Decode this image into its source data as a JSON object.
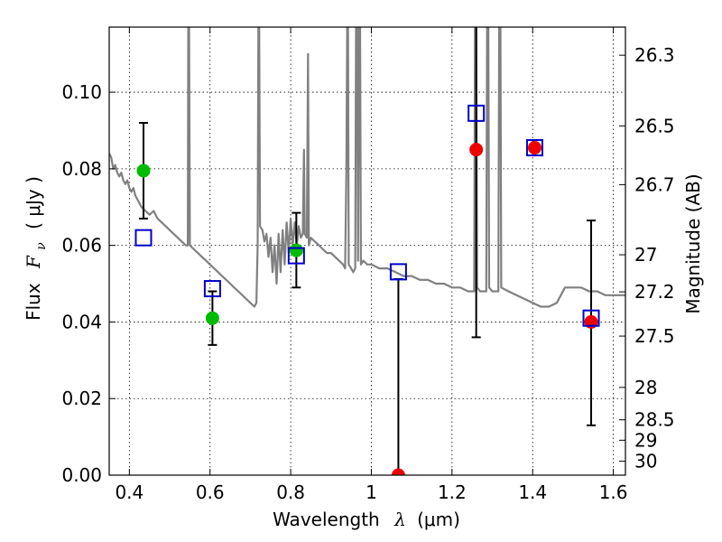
{
  "chart_data": {
    "type": "scatter",
    "xlabel_text": "Wavelength",
    "xlabel_symbol": "λ",
    "xlabel_unit": "(μm)",
    "ylabel_text": "Flux",
    "ylabel_symbol": "F",
    "ylabel_subscript": "ν",
    "ylabel_unit": "( μJy )",
    "right_ylabel": "Magnitude (AB)",
    "xlim": [
      0.35,
      1.63
    ],
    "ylim": [
      0.0,
      0.117
    ],
    "x_ticks": [
      {
        "value": 0.4,
        "label": "0.4"
      },
      {
        "value": 0.6,
        "label": "0.6"
      },
      {
        "value": 0.8,
        "label": "0.8"
      },
      {
        "value": 1.0,
        "label": "1"
      },
      {
        "value": 1.2,
        "label": "1.2"
      },
      {
        "value": 1.4,
        "label": "1.4"
      },
      {
        "value": 1.6,
        "label": "1.6"
      }
    ],
    "y_ticks": [
      {
        "value": 0.0,
        "label": "0.00"
      },
      {
        "value": 0.02,
        "label": "0.02"
      },
      {
        "value": 0.04,
        "label": "0.04"
      },
      {
        "value": 0.06,
        "label": "0.06"
      },
      {
        "value": 0.08,
        "label": "0.08"
      },
      {
        "value": 0.1,
        "label": "0.10"
      }
    ],
    "right_ticks": [
      {
        "value": 26.3,
        "label": "26.3"
      },
      {
        "value": 26.5,
        "label": "26.5"
      },
      {
        "value": 26.7,
        "label": "26.7"
      },
      {
        "value": 27.0,
        "label": "27"
      },
      {
        "value": 27.2,
        "label": "27.2"
      },
      {
        "value": 27.5,
        "label": "27.5"
      },
      {
        "value": 28.0,
        "label": "28"
      },
      {
        "value": 28.5,
        "label": "28.5"
      },
      {
        "value": 29.0,
        "label": "29"
      },
      {
        "value": 30.0,
        "label": "30"
      }
    ],
    "grid": true,
    "colors": {
      "sed": "#808080",
      "green": "#00bb00",
      "red": "#ee0000",
      "box": "#0000cc",
      "error": "#000000"
    },
    "sed_model": [
      [
        0.35,
        0.084
      ],
      [
        0.355,
        0.083
      ],
      [
        0.36,
        0.08
      ],
      [
        0.365,
        0.081
      ],
      [
        0.37,
        0.079
      ],
      [
        0.375,
        0.078
      ],
      [
        0.38,
        0.079
      ],
      [
        0.385,
        0.077
      ],
      [
        0.39,
        0.076
      ],
      [
        0.395,
        0.077
      ],
      [
        0.4,
        0.075
      ],
      [
        0.405,
        0.074
      ],
      [
        0.41,
        0.075
      ],
      [
        0.415,
        0.073
      ],
      [
        0.42,
        0.072
      ],
      [
        0.425,
        0.071
      ],
      [
        0.43,
        0.07
      ],
      [
        0.44,
        0.069
      ],
      [
        0.45,
        0.068
      ],
      [
        0.46,
        0.069
      ],
      [
        0.47,
        0.067
      ],
      [
        0.48,
        0.066
      ],
      [
        0.49,
        0.065
      ],
      [
        0.5,
        0.064
      ],
      [
        0.51,
        0.063
      ],
      [
        0.52,
        0.062
      ],
      [
        0.53,
        0.061
      ],
      [
        0.54,
        0.06
      ],
      [
        0.545,
        0.06
      ],
      [
        0.546,
        0.117
      ],
      [
        0.548,
        0.117
      ],
      [
        0.55,
        0.06
      ],
      [
        0.56,
        0.059
      ],
      [
        0.57,
        0.058
      ],
      [
        0.58,
        0.057
      ],
      [
        0.59,
        0.056
      ],
      [
        0.6,
        0.055
      ],
      [
        0.61,
        0.054
      ],
      [
        0.62,
        0.053
      ],
      [
        0.63,
        0.052
      ],
      [
        0.64,
        0.051
      ],
      [
        0.65,
        0.05
      ],
      [
        0.66,
        0.049
      ],
      [
        0.67,
        0.048
      ],
      [
        0.68,
        0.047
      ],
      [
        0.69,
        0.046
      ],
      [
        0.7,
        0.045
      ],
      [
        0.71,
        0.044
      ],
      [
        0.715,
        0.045
      ],
      [
        0.718,
        0.06
      ],
      [
        0.72,
        0.117
      ],
      [
        0.722,
        0.117
      ],
      [
        0.724,
        0.065
      ],
      [
        0.73,
        0.064
      ],
      [
        0.735,
        0.061
      ],
      [
        0.74,
        0.063
      ],
      [
        0.745,
        0.057
      ],
      [
        0.75,
        0.062
      ],
      [
        0.755,
        0.053
      ],
      [
        0.76,
        0.06
      ],
      [
        0.765,
        0.05
      ],
      [
        0.77,
        0.063
      ],
      [
        0.775,
        0.053
      ],
      [
        0.78,
        0.064
      ],
      [
        0.785,
        0.055
      ],
      [
        0.79,
        0.066
      ],
      [
        0.795,
        0.058
      ],
      [
        0.8,
        0.067
      ],
      [
        0.805,
        0.06
      ],
      [
        0.81,
        0.066
      ],
      [
        0.815,
        0.06
      ],
      [
        0.82,
        0.065
      ],
      [
        0.825,
        0.062
      ],
      [
        0.83,
        0.063
      ],
      [
        0.833,
        0.085
      ],
      [
        0.835,
        0.063
      ],
      [
        0.84,
        0.062
      ],
      [
        0.843,
        0.11
      ],
      [
        0.845,
        0.06
      ],
      [
        0.85,
        0.062
      ],
      [
        0.86,
        0.061
      ],
      [
        0.87,
        0.06
      ],
      [
        0.88,
        0.059
      ],
      [
        0.89,
        0.058
      ],
      [
        0.9,
        0.058
      ],
      [
        0.91,
        0.057
      ],
      [
        0.92,
        0.056
      ],
      [
        0.93,
        0.055
      ],
      [
        0.935,
        0.054
      ],
      [
        0.938,
        0.08
      ],
      [
        0.94,
        0.117
      ],
      [
        0.942,
        0.117
      ],
      [
        0.944,
        0.055
      ],
      [
        0.95,
        0.054
      ],
      [
        0.955,
        0.053
      ],
      [
        0.96,
        0.054
      ],
      [
        0.962,
        0.117
      ],
      [
        0.965,
        0.117
      ],
      [
        0.967,
        0.056
      ],
      [
        0.97,
        0.117
      ],
      [
        0.972,
        0.117
      ],
      [
        0.974,
        0.055
      ],
      [
        0.98,
        0.056
      ],
      [
        0.99,
        0.055
      ],
      [
        1.0,
        0.055
      ],
      [
        1.02,
        0.054
      ],
      [
        1.04,
        0.054
      ],
      [
        1.06,
        0.053
      ],
      [
        1.08,
        0.052
      ],
      [
        1.1,
        0.052
      ],
      [
        1.12,
        0.051
      ],
      [
        1.14,
        0.051
      ],
      [
        1.16,
        0.05
      ],
      [
        1.18,
        0.05
      ],
      [
        1.2,
        0.049
      ],
      [
        1.22,
        0.049
      ],
      [
        1.24,
        0.048
      ],
      [
        1.25,
        0.048
      ],
      [
        1.255,
        0.048
      ],
      [
        1.257,
        0.117
      ],
      [
        1.26,
        0.117
      ],
      [
        1.262,
        0.049
      ],
      [
        1.27,
        0.048
      ],
      [
        1.28,
        0.048
      ],
      [
        1.285,
        0.048
      ],
      [
        1.287,
        0.117
      ],
      [
        1.29,
        0.117
      ],
      [
        1.292,
        0.049
      ],
      [
        1.3,
        0.048
      ],
      [
        1.31,
        0.048
      ],
      [
        1.315,
        0.048
      ],
      [
        1.317,
        0.117
      ],
      [
        1.32,
        0.117
      ],
      [
        1.322,
        0.049
      ],
      [
        1.34,
        0.048
      ],
      [
        1.36,
        0.047
      ],
      [
        1.38,
        0.046
      ],
      [
        1.4,
        0.045
      ],
      [
        1.42,
        0.044
      ],
      [
        1.44,
        0.044
      ],
      [
        1.46,
        0.045
      ],
      [
        1.48,
        0.049
      ],
      [
        1.5,
        0.049
      ],
      [
        1.52,
        0.049
      ],
      [
        1.54,
        0.048
      ],
      [
        1.56,
        0.048
      ],
      [
        1.58,
        0.047
      ],
      [
        1.6,
        0.047
      ],
      [
        1.63,
        0.047
      ]
    ],
    "green_points": [
      {
        "x": 0.435,
        "y": 0.0795,
        "ylow": 0.067,
        "yhigh": 0.092
      },
      {
        "x": 0.606,
        "y": 0.041,
        "ylow": 0.034,
        "yhigh": 0.048
      },
      {
        "x": 0.814,
        "y": 0.0587,
        "ylow": 0.049,
        "yhigh": 0.0685
      }
    ],
    "red_points": [
      {
        "x": 1.067,
        "y": 0.0,
        "ylow": 0.0,
        "yhigh": 0.0512
      },
      {
        "x": 1.26,
        "y": 0.085,
        "ylow": 0.036,
        "yhigh": 0.117
      },
      {
        "x": 1.405,
        "y": 0.0855,
        "ylow": 0.0855,
        "yhigh": 0.0855
      },
      {
        "x": 1.545,
        "y": 0.04,
        "ylow": 0.013,
        "yhigh": 0.0665
      }
    ],
    "model_boxes": [
      {
        "x": 0.435,
        "y": 0.062
      },
      {
        "x": 0.606,
        "y": 0.0487
      },
      {
        "x": 0.814,
        "y": 0.0573
      },
      {
        "x": 1.067,
        "y": 0.0531
      },
      {
        "x": 1.26,
        "y": 0.0945
      },
      {
        "x": 1.405,
        "y": 0.0855
      },
      {
        "x": 1.545,
        "y": 0.041
      }
    ]
  }
}
